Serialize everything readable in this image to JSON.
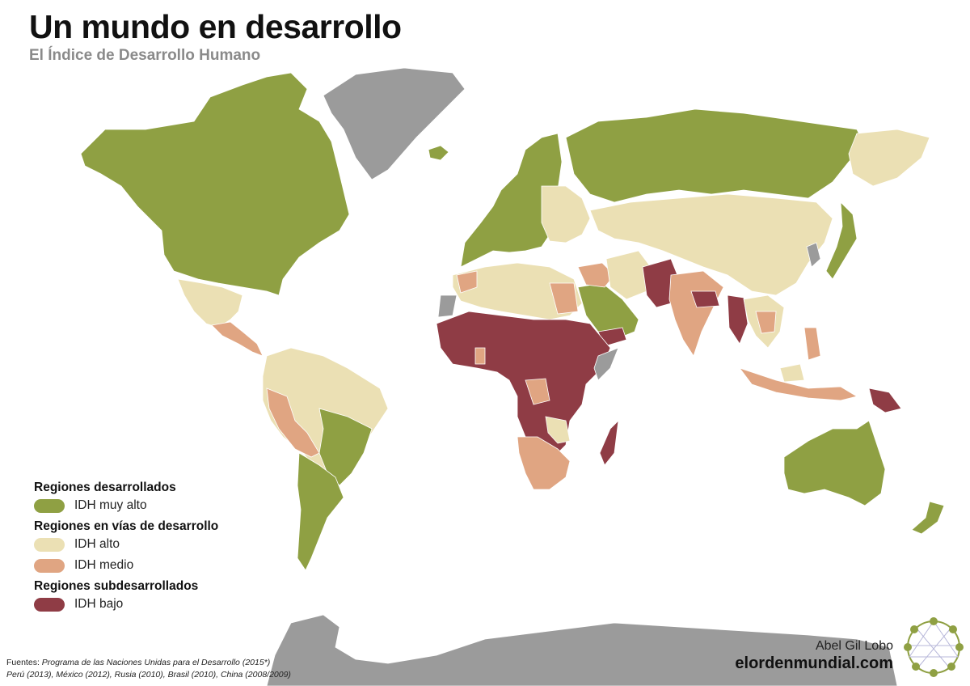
{
  "title": "Un mundo en desarrollo",
  "subtitle": "El Índice de Desarrollo Humano",
  "colors": {
    "muy_alto": "#8fa043",
    "alto": "#ebe0b4",
    "medio": "#e0a582",
    "bajo": "#8f3c45",
    "no_data": "#9b9b9b",
    "antarctica": "#9b9b9b"
  },
  "legend": {
    "groups": [
      {
        "title": "Regiones desarrollados",
        "items": [
          {
            "label": "IDH muy alto",
            "color_key": "muy_alto"
          }
        ]
      },
      {
        "title": "Regiones en vías de desarrollo",
        "items": [
          {
            "label": "IDH alto",
            "color_key": "alto"
          },
          {
            "label": "IDH medio",
            "color_key": "medio"
          }
        ]
      },
      {
        "title": "Regiones subdesarrollados",
        "items": [
          {
            "label": "IDH bajo",
            "color_key": "bajo"
          }
        ]
      }
    ]
  },
  "sources": {
    "label": "Fuentes:",
    "line1_italic": "Programa de las Naciones Unidas para el Desarrollo (2015*)",
    "line2": "Perú (2013),  México (2012), Rusia (2010), Brasil (2010),  China (2008/2009)"
  },
  "author": "Abel Gil Lobo",
  "site": "elordenmundial.com",
  "logo_icon": "world-network-logo-icon"
}
